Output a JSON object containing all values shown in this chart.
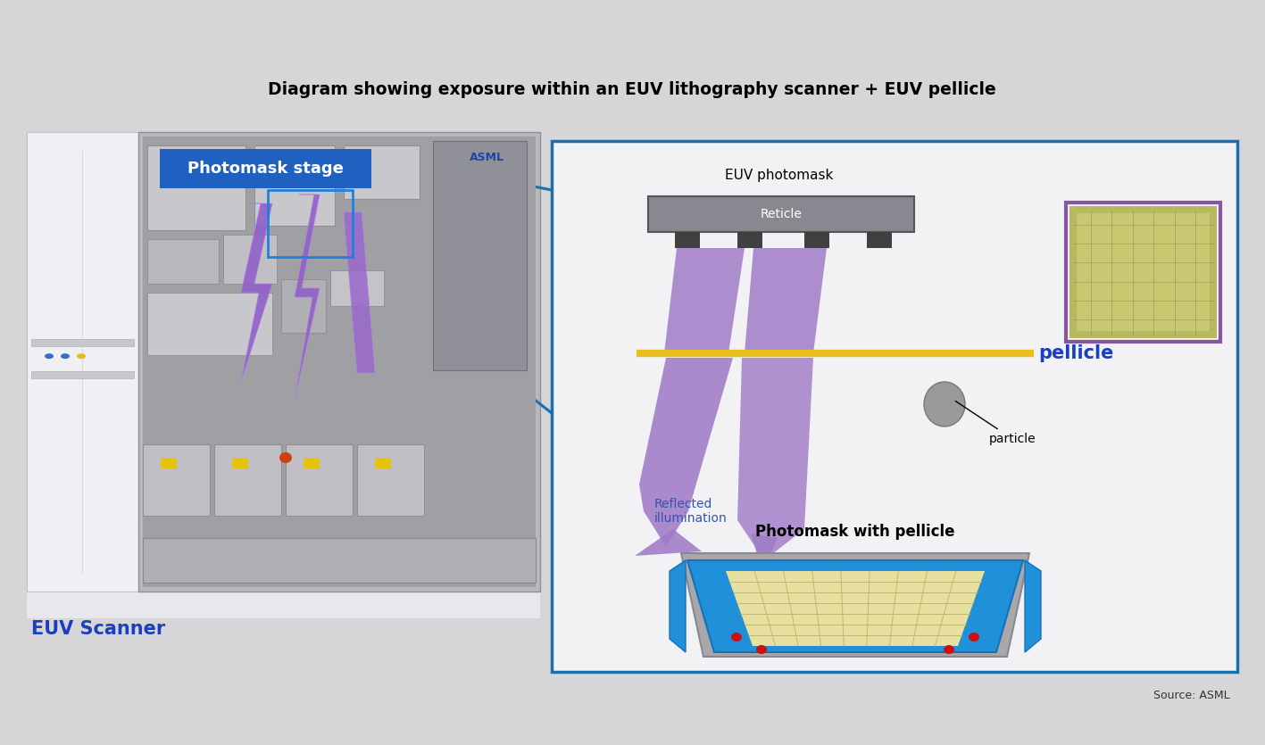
{
  "title": "Diagram showing exposure within an EUV lithography scanner + EUV pellicle",
  "title_fontsize": 13.5,
  "title_fontweight": "bold",
  "bg_color": "#d6d6d8",
  "right_panel_bg": "#f2f2f4",
  "euv_scanner_label": "EUV Scanner",
  "photomask_stage_label": "Photomask stage",
  "euv_photomask_label": "EUV photomask",
  "reticle_label": "Reticle",
  "pellicle_label": "pellicle",
  "particle_label": "particle",
  "reflected_label": "Reflected\nillumination",
  "photomask_pellicle_label": "Photomask with pellicle",
  "asml_label": "ASML",
  "source_label": "Source: ASML",
  "blue_border_color": "#1a6faf",
  "arrow_color": "#a07cc8",
  "pellicle_line_color": "#e8c020",
  "reticle_color": "#888888",
  "pellicle_text_color": "#1a3fbf",
  "photomask_stage_text_color": "#ffffff",
  "photomask_stage_bg": "#2060c0",
  "euv_scanner_text_color": "#1a3fbf",
  "reflected_label_color": "#3355aa",
  "source_fontsize": 9,
  "label_fontsize": 10,
  "pellicle_label_fontsize": 15
}
